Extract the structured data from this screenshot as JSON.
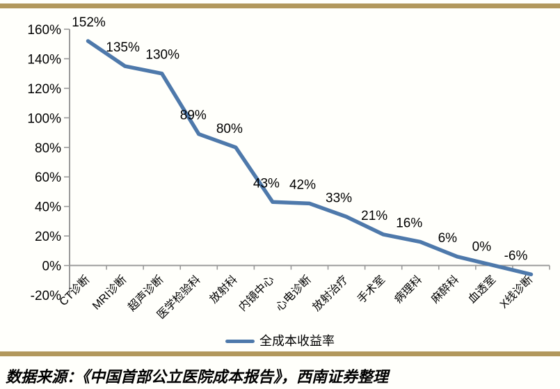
{
  "chart_data": {
    "type": "line",
    "title": "",
    "categories": [
      "CT诊断",
      "MRI诊断",
      "超声诊断",
      "医学检验科",
      "放射科",
      "内镜中心",
      "心电诊断",
      "放射治疗",
      "手术室",
      "病理科",
      "麻醉科",
      "血透室",
      "X线诊断"
    ],
    "series": [
      {
        "name": "全成本收益率",
        "values": [
          152,
          135,
          130,
          89,
          80,
          43,
          42,
          33,
          21,
          16,
          6,
          0,
          -6
        ],
        "point_labels": [
          "152%",
          "135%",
          "130%",
          "89%",
          "80%",
          "43%",
          "42%",
          "33%",
          "21%",
          "16%",
          "6%",
          "0%",
          "-6%"
        ]
      }
    ],
    "xlabel": "",
    "ylabel": "",
    "ylim": [
      -20,
      160
    ],
    "ytick_step": 20,
    "ytick_labels": [
      "160%",
      "140%",
      "120%",
      "100%",
      "80%",
      "60%",
      "40%",
      "20%",
      "0%",
      "-20%"
    ],
    "grid": false,
    "legend_position": "bottom-center",
    "x_label_rotation_deg": 45
  },
  "legend": {
    "series_label": "全成本收益率"
  },
  "footer": {
    "source_note": "数据来源：《中国首部公立医院成本报告》，西南证券整理"
  },
  "colors": {
    "line": "#4E79AB",
    "axis": "#999999",
    "text": "#000000",
    "rule": "#B2985C",
    "background": "#FFFFFB"
  }
}
